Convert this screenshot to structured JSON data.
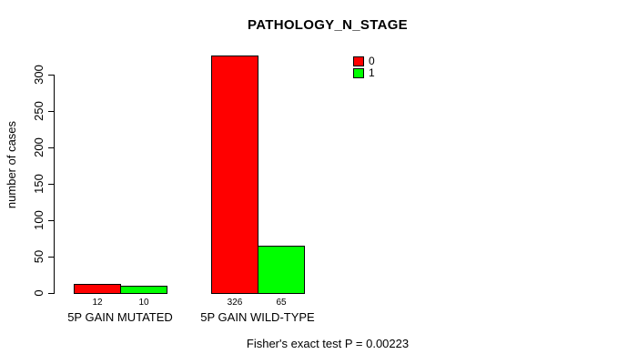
{
  "title": "PATHOLOGY_N_STAGE",
  "footer_note": "Fisher's exact test P = 0.00223",
  "chart_data": {
    "type": "bar",
    "title": "PATHOLOGY_N_STAGE",
    "xlabel": "",
    "ylabel": "number of cases",
    "categories": [
      "5P GAIN MUTATED",
      "5P GAIN WILD-TYPE"
    ],
    "series": [
      {
        "name": "0",
        "color": "#FF0000",
        "values": [
          12,
          326
        ]
      },
      {
        "name": "1",
        "color": "#00FF00",
        "values": [
          10,
          65
        ]
      }
    ],
    "bar_value_labels": [
      [
        "12",
        "326"
      ],
      [
        "10",
        "65"
      ]
    ],
    "yticks": [
      0,
      50,
      100,
      150,
      200,
      250,
      300
    ],
    "ylim": [
      0,
      326
    ],
    "grid": false,
    "legend_position": "top-right",
    "annotation": "Fisher's exact test P = 0.00223",
    "colors": {
      "background": "#FFFFFF",
      "axis": "#000000",
      "text": "#000000"
    }
  }
}
